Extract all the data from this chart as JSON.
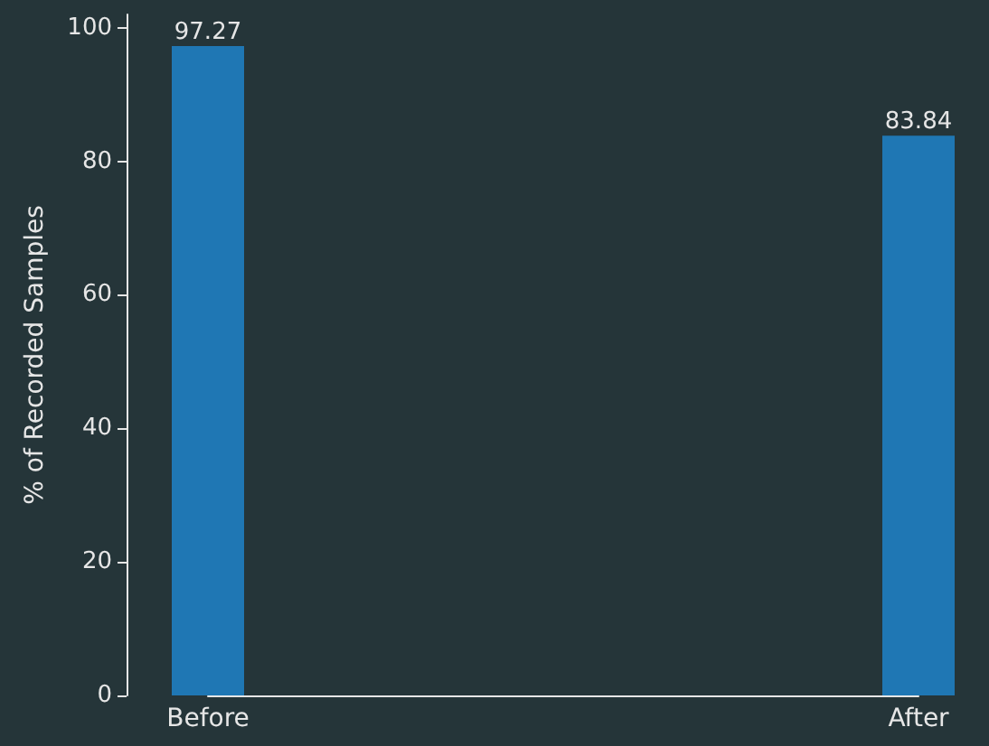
{
  "chart_data": {
    "type": "bar",
    "ylabel": "% of Recorded Samples",
    "categories": [
      "Before",
      "After"
    ],
    "values": [
      97.27,
      83.84
    ],
    "color": "#1f77b4",
    "ylim": [
      0,
      102
    ],
    "yticks": [
      0,
      20,
      40,
      60,
      80,
      100
    ],
    "data_labels": true
  }
}
